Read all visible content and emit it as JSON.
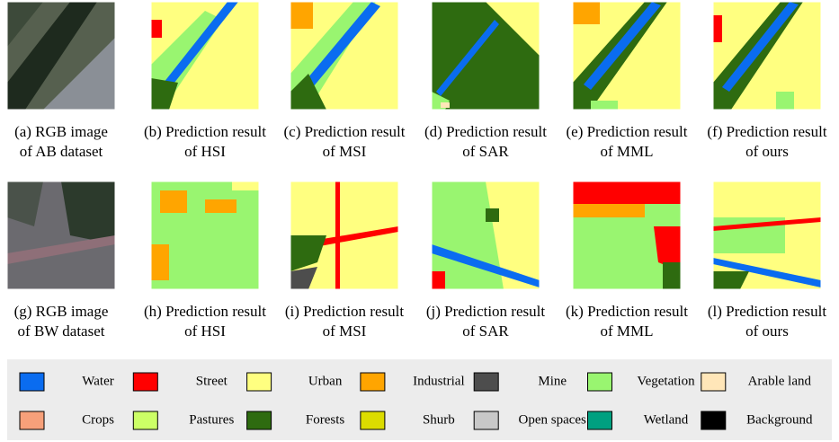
{
  "rows": [
    {
      "panels": [
        {
          "caption": [
            "(a) RGB image",
            "of AB dataset"
          ]
        },
        {
          "caption": [
            "(b) Prediction result",
            "of HSI"
          ]
        },
        {
          "caption": [
            "(c) Prediction result",
            "of MSI"
          ]
        },
        {
          "caption": [
            "(d) Prediction result",
            "of SAR"
          ]
        },
        {
          "caption": [
            "(e) Prediction result",
            "of MML"
          ]
        },
        {
          "caption": [
            "(f) Prediction result",
            "of ours"
          ]
        }
      ]
    },
    {
      "panels": [
        {
          "caption": [
            "(g) RGB image",
            "of BW dataset"
          ]
        },
        {
          "caption": [
            "(h) Prediction result",
            "of HSI"
          ]
        },
        {
          "caption": [
            "(i) Prediction result",
            "of MSI"
          ]
        },
        {
          "caption": [
            "(j) Prediction result",
            "of SAR"
          ]
        },
        {
          "caption": [
            "(k) Prediction result",
            "of MML"
          ]
        },
        {
          "caption": [
            "(l) Prediction result",
            "of ours"
          ]
        }
      ]
    }
  ],
  "legend": {
    "items": [
      {
        "label": "Water",
        "color": "#0a6cf0"
      },
      {
        "label": "Street",
        "color": "#ff0000"
      },
      {
        "label": "Urban",
        "color": "#ffff80"
      },
      {
        "label": "Industrial",
        "color": "#ffa500"
      },
      {
        "label": "Mine",
        "color": "#4d4d4d"
      },
      {
        "label": "Vegetation",
        "color": "#99f570"
      },
      {
        "label": "Arable land",
        "color": "#ffe6b8"
      },
      {
        "label": "Crops",
        "color": "#f7a07a"
      },
      {
        "label": "Pastures",
        "color": "#ccff66"
      },
      {
        "label": "Forests",
        "color": "#2e6b10"
      },
      {
        "label": "Shurb",
        "color": "#dcdc00"
      },
      {
        "label": "Open spaces",
        "color": "#c8c8c8"
      },
      {
        "label": "Wetland",
        "color": "#00a080"
      },
      {
        "label": "Background",
        "color": "#000000"
      }
    ]
  }
}
